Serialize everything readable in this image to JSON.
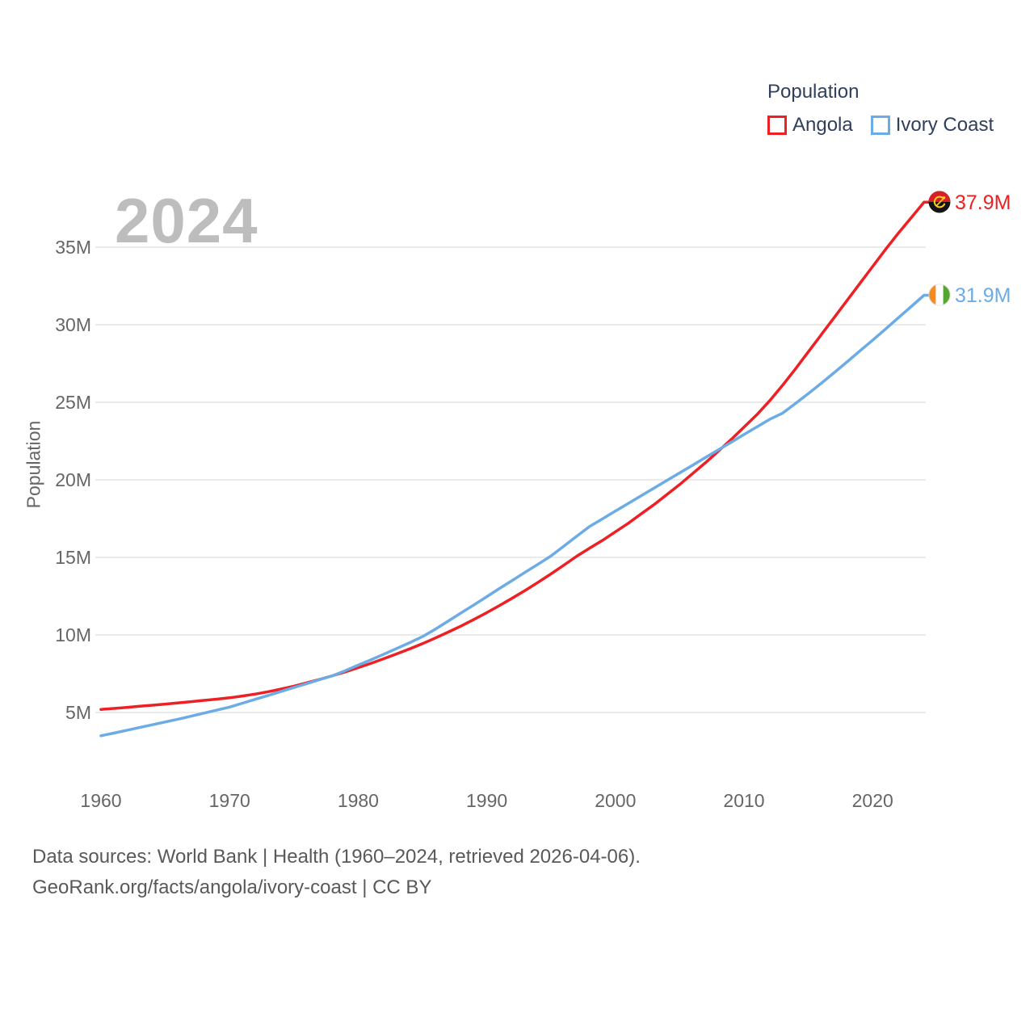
{
  "legend": {
    "title": "Population",
    "items": [
      {
        "label": "Angola",
        "color": "#ed2024"
      },
      {
        "label": "Ivory Coast",
        "color": "#6cace6"
      }
    ]
  },
  "watermark_year": "2024",
  "end_labels": {
    "angola": {
      "value": "37.9M",
      "color": "#ed2024",
      "icon": "angola-flag-icon"
    },
    "ivory_coast": {
      "value": "31.9M",
      "color": "#6cace6",
      "icon": "ivory-coast-flag-icon"
    }
  },
  "footer": {
    "line1": "Data sources: World Bank | Health (1960–2024, retrieved 2026-04-06).",
    "line2": "GeoRank.org/facts/angola/ivory-coast | CC BY"
  },
  "chart_data": {
    "type": "line",
    "title": "",
    "xlabel": "",
    "ylabel": "Population",
    "units": "millions of people",
    "grid": true,
    "legend_position": "top-right",
    "x_ticks": [
      1960,
      1970,
      1980,
      1990,
      2000,
      2010,
      2020
    ],
    "y_tick_values": [
      5,
      10,
      15,
      20,
      25,
      30,
      35
    ],
    "y_tick_labels": [
      "5M",
      "10M",
      "15M",
      "20M",
      "25M",
      "30M",
      "35M"
    ],
    "xlim": [
      1960,
      2024
    ],
    "ylim": [
      2.5,
      39.5
    ],
    "years": [
      1960,
      1961,
      1962,
      1963,
      1964,
      1965,
      1966,
      1967,
      1968,
      1969,
      1970,
      1971,
      1972,
      1973,
      1974,
      1975,
      1976,
      1977,
      1978,
      1979,
      1980,
      1981,
      1982,
      1983,
      1984,
      1985,
      1986,
      1987,
      1988,
      1989,
      1990,
      1991,
      1992,
      1993,
      1994,
      1995,
      1996,
      1997,
      1998,
      1999,
      2000,
      2001,
      2002,
      2003,
      2004,
      2005,
      2006,
      2007,
      2008,
      2009,
      2010,
      2011,
      2012,
      2013,
      2014,
      2015,
      2016,
      2017,
      2018,
      2019,
      2020,
      2021,
      2022,
      2023,
      2024
    ],
    "series": [
      {
        "name": "Angola",
        "color": "#ed2024",
        "end_label": "37.9M",
        "values": [
          5.2,
          5.26,
          5.33,
          5.4,
          5.47,
          5.54,
          5.62,
          5.7,
          5.78,
          5.86,
          5.95,
          6.06,
          6.19,
          6.34,
          6.51,
          6.7,
          6.91,
          7.13,
          7.37,
          7.62,
          7.89,
          8.17,
          8.47,
          8.78,
          9.1,
          9.44,
          9.8,
          10.18,
          10.58,
          11.0,
          11.44,
          11.9,
          12.38,
          12.88,
          13.4,
          13.94,
          14.5,
          15.08,
          15.6,
          16.1,
          16.65,
          17.2,
          17.8,
          18.4,
          19.05,
          19.7,
          20.4,
          21.1,
          21.85,
          22.6,
          23.4,
          24.2,
          25.1,
          26.1,
          27.15,
          28.25,
          29.35,
          30.45,
          31.55,
          32.65,
          33.75,
          34.85,
          35.9,
          36.9,
          37.9
        ]
      },
      {
        "name": "Ivory Coast",
        "color": "#6cace6",
        "end_label": "31.9M",
        "values": [
          3.5,
          3.67,
          3.85,
          4.03,
          4.21,
          4.39,
          4.57,
          4.76,
          4.96,
          5.15,
          5.35,
          5.6,
          5.85,
          6.1,
          6.36,
          6.61,
          6.86,
          7.12,
          7.37,
          7.7,
          8.05,
          8.4,
          8.76,
          9.13,
          9.5,
          9.89,
          10.37,
          10.89,
          11.42,
          11.94,
          12.47,
          13.0,
          13.52,
          14.05,
          14.57,
          15.1,
          15.73,
          16.37,
          17.0,
          17.49,
          17.99,
          18.48,
          18.97,
          19.47,
          19.96,
          20.45,
          20.94,
          21.44,
          21.93,
          22.42,
          22.92,
          23.41,
          23.9,
          24.3,
          24.92,
          25.56,
          26.22,
          26.9,
          27.6,
          28.3,
          29.0,
          29.72,
          30.45,
          31.17,
          31.9
        ]
      }
    ]
  }
}
